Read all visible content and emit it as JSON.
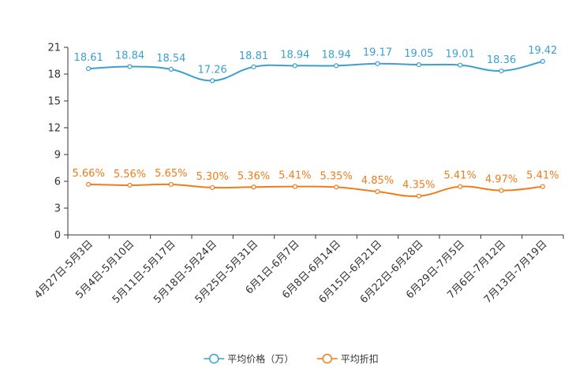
{
  "chart_data": {
    "type": "line",
    "title": "",
    "xlabel": "",
    "ylabel": "",
    "categories": [
      "4月27日-5月3日",
      "5月4日-5月10日",
      "5月11日-5月17日",
      "5月18日-5月24日",
      "5月25日-5月31日",
      "6月1日-6月7日",
      "6月8日-6月14日",
      "6月15日-6月21日",
      "6月22日-6月28日",
      "6月29日-7月5日",
      "7月6日-7月12日",
      "7月13日-7月19日"
    ],
    "ylim": [
      0,
      21
    ],
    "yticks": [
      0,
      3,
      6,
      9,
      12,
      15,
      18,
      21
    ],
    "grid": false,
    "legend_position": "bottom",
    "series": [
      {
        "name": "平均价格（万）",
        "color": "#3ba0d0",
        "values": [
          18.61,
          18.84,
          18.54,
          17.26,
          18.81,
          18.94,
          18.94,
          19.17,
          19.05,
          19.01,
          18.36,
          19.42
        ],
        "labels": [
          "18.61",
          "18.84",
          "18.54",
          "17.26",
          "18.81",
          "18.94",
          "18.94",
          "19.17",
          "19.05",
          "19.01",
          "18.36",
          "19.42"
        ]
      },
      {
        "name": "平均折扣",
        "color": "#f07c1a",
        "values": [
          5.66,
          5.56,
          5.65,
          5.3,
          5.36,
          5.41,
          5.35,
          4.85,
          4.35,
          5.41,
          4.97,
          5.41
        ],
        "labels": [
          "5.66%",
          "5.56%",
          "5.65%",
          "5.30%",
          "5.36%",
          "5.41%",
          "5.35%",
          "4.85%",
          "4.35%",
          "5.41%",
          "4.97%",
          "5.41%"
        ]
      }
    ]
  }
}
